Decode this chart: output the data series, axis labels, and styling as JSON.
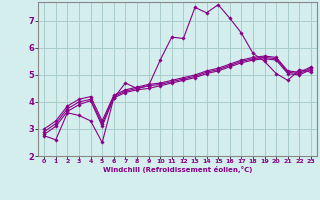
{
  "title": "",
  "xlabel": "Windchill (Refroidissement éolien,°C)",
  "ylabel": "",
  "bg_color": "#d4eeed",
  "plot_bg_color": "#d4eeed",
  "grid_color": "#a8cccc",
  "line_color": "#880088",
  "spine_color": "#888888",
  "tick_color": "#880088",
  "label_color": "#880088",
  "xlim": [
    -0.5,
    23.5
  ],
  "ylim": [
    2.0,
    7.7
  ],
  "xticks": [
    0,
    1,
    2,
    3,
    4,
    5,
    6,
    7,
    8,
    9,
    10,
    11,
    12,
    13,
    14,
    15,
    16,
    17,
    18,
    19,
    20,
    21,
    22,
    23
  ],
  "yticks": [
    2,
    3,
    4,
    5,
    6,
    7
  ],
  "lines": [
    {
      "x": [
        0,
        1,
        2,
        3,
        4,
        5,
        6,
        7,
        8,
        9,
        10,
        11,
        12,
        13,
        14,
        15,
        16,
        17,
        18,
        19,
        20,
        21,
        22,
        23
      ],
      "y": [
        2.75,
        2.6,
        3.6,
        3.5,
        3.3,
        2.5,
        4.15,
        4.7,
        4.5,
        4.6,
        5.55,
        6.4,
        6.35,
        7.5,
        7.3,
        7.6,
        7.1,
        6.55,
        5.8,
        5.5,
        5.05,
        4.8,
        5.2,
        5.1
      ]
    },
    {
      "x": [
        0,
        1,
        2,
        3,
        4,
        5,
        6,
        7,
        8,
        9,
        10,
        11,
        12,
        13,
        14,
        15,
        16,
        17,
        18,
        19,
        20,
        21,
        22,
        23
      ],
      "y": [
        2.8,
        3.1,
        3.65,
        3.9,
        4.05,
        3.1,
        4.15,
        4.35,
        4.45,
        4.5,
        4.6,
        4.7,
        4.8,
        4.9,
        5.05,
        5.15,
        5.3,
        5.45,
        5.55,
        5.6,
        5.55,
        5.05,
        5.0,
        5.2
      ]
    },
    {
      "x": [
        0,
        1,
        2,
        3,
        4,
        5,
        6,
        7,
        8,
        9,
        10,
        11,
        12,
        13,
        14,
        15,
        16,
        17,
        18,
        19,
        20,
        21,
        22,
        23
      ],
      "y": [
        2.9,
        3.2,
        3.75,
        4.0,
        4.1,
        3.2,
        4.2,
        4.4,
        4.5,
        4.6,
        4.65,
        4.75,
        4.85,
        4.95,
        5.1,
        5.2,
        5.35,
        5.5,
        5.6,
        5.65,
        5.6,
        5.1,
        5.05,
        5.25
      ]
    },
    {
      "x": [
        0,
        1,
        2,
        3,
        4,
        5,
        6,
        7,
        8,
        9,
        10,
        11,
        12,
        13,
        14,
        15,
        16,
        17,
        18,
        19,
        20,
        21,
        22,
        23
      ],
      "y": [
        3.0,
        3.3,
        3.85,
        4.1,
        4.2,
        3.3,
        4.25,
        4.45,
        4.55,
        4.65,
        4.7,
        4.8,
        4.9,
        5.0,
        5.15,
        5.25,
        5.4,
        5.55,
        5.65,
        5.7,
        5.65,
        5.15,
        5.1,
        5.3
      ]
    }
  ]
}
